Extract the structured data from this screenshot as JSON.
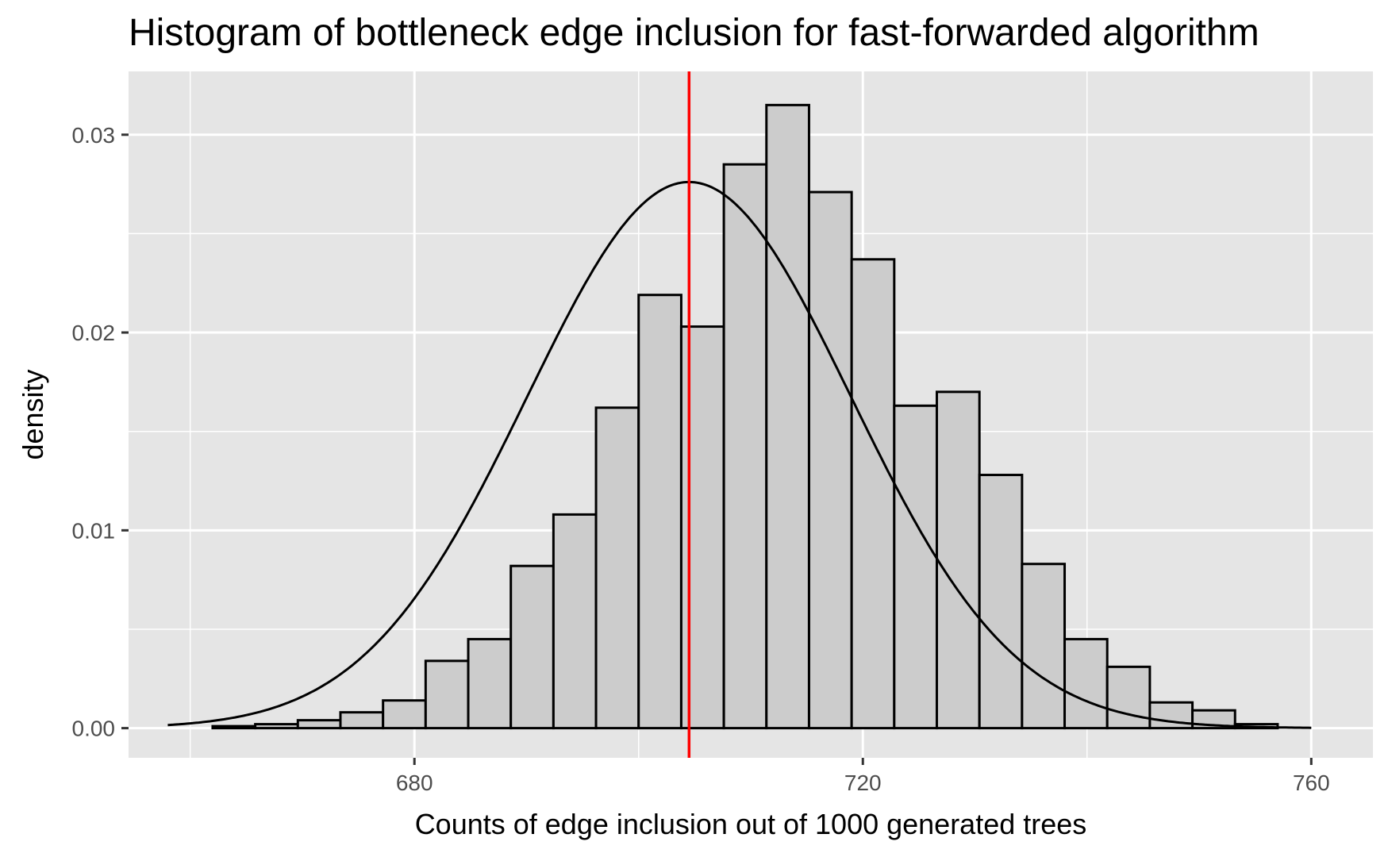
{
  "chart_data": {
    "type": "bar",
    "title": "Histogram of bottleneck edge inclusion for fast-forwarded algorithm",
    "xlabel": "Counts of edge inclusion out of 1000 generated trees",
    "ylabel": "density",
    "xlim": [
      654.5,
      765.5
    ],
    "ylim": [
      -0.0015,
      0.0332
    ],
    "x_ticks": [
      680,
      720,
      760
    ],
    "x_tick_labels": [
      "680",
      "720",
      "760"
    ],
    "y_ticks": [
      0.0,
      0.01,
      0.02,
      0.03
    ],
    "y_tick_labels": [
      "0.00",
      "0.01",
      "0.02",
      "0.03"
    ],
    "grid": true,
    "bin_width": 3.8,
    "bin_starts": [
      658.2,
      662.0,
      665.8,
      669.6,
      673.4,
      677.2,
      681.0,
      684.8,
      688.6,
      692.4,
      696.2,
      700.0,
      703.8,
      707.6,
      711.4,
      715.2,
      719.0,
      722.8,
      726.6,
      730.4,
      734.2,
      738.0,
      741.8,
      745.6,
      749.4,
      753.2
    ],
    "densities": [
      0.0,
      0.0001,
      0.0002,
      0.0004,
      0.0008,
      0.0014,
      0.0034,
      0.0045,
      0.0082,
      0.0108,
      0.0162,
      0.0219,
      0.0203,
      0.0285,
      0.0315,
      0.0271,
      0.0237,
      0.0163,
      0.017,
      0.0128,
      0.0083,
      0.0045,
      0.0031,
      0.0013,
      0.0009,
      0.0002
    ],
    "series": [
      {
        "type": "line",
        "values_fn": "normal_density",
        "mean": 704.5,
        "sd": 14.45,
        "x_range": [
          658,
          760
        ]
      }
    ],
    "annotations": [
      {
        "type": "vline",
        "x": 704.5,
        "color": "#ff0000"
      }
    ],
    "colors": {
      "panel_background": "#e5e5e5",
      "grid": "#ffffff",
      "bar_fill": "#cccccc",
      "bar_stroke": "#000000",
      "density_curve": "#000000",
      "vline": "#ff0000"
    }
  }
}
